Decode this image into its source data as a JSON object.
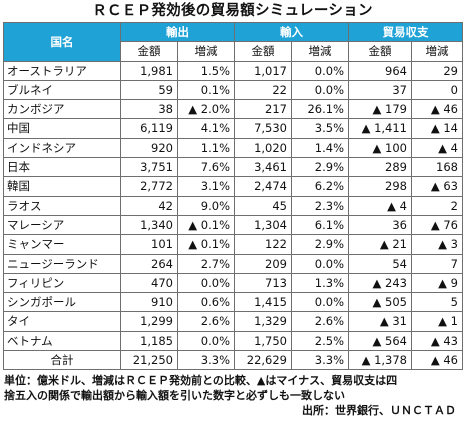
{
  "title": "ＲＣＥＰ発効後の貿易額シミュレーション",
  "chart_data": {
    "type": "table",
    "header_groups": {
      "country": "国名",
      "exports": "輸出",
      "imports": "輸入",
      "balance": "貿易収支"
    },
    "subheaders": {
      "ex_amount": "金額",
      "ex_change": "増減",
      "im_amount": "金額",
      "im_change": "増減",
      "bal_amount": "金額",
      "bal_change": "増減"
    },
    "rows": [
      {
        "country": "オーストラリア",
        "ex_amount": "1,981",
        "ex_change": "1.5%",
        "im_amount": "1,017",
        "im_change": "0.0%",
        "bal_amount": "964",
        "bal_change": "29"
      },
      {
        "country": "ブルネイ",
        "ex_amount": "59",
        "ex_change": "0.1%",
        "im_amount": "22",
        "im_change": "0.0%",
        "bal_amount": "37",
        "bal_change": "0"
      },
      {
        "country": "カンボジア",
        "ex_amount": "38",
        "ex_change": "▲ 2.0%",
        "im_amount": "217",
        "im_change": "26.1%",
        "bal_amount": "▲ 179",
        "bal_change": "▲ 46"
      },
      {
        "country": "中国",
        "ex_amount": "6,119",
        "ex_change": "4.1%",
        "im_amount": "7,530",
        "im_change": "3.5%",
        "bal_amount": "▲ 1,411",
        "bal_change": "▲ 14"
      },
      {
        "country": "インドネシア",
        "ex_amount": "920",
        "ex_change": "1.1%",
        "im_amount": "1,020",
        "im_change": "1.4%",
        "bal_amount": "▲ 100",
        "bal_change": "▲ 4"
      },
      {
        "country": "日本",
        "ex_amount": "3,751",
        "ex_change": "7.6%",
        "im_amount": "3,461",
        "im_change": "2.9%",
        "bal_amount": "289",
        "bal_change": "168"
      },
      {
        "country": "韓国",
        "ex_amount": "2,772",
        "ex_change": "3.1%",
        "im_amount": "2,474",
        "im_change": "6.2%",
        "bal_amount": "298",
        "bal_change": "▲ 63"
      },
      {
        "country": "ラオス",
        "ex_amount": "42",
        "ex_change": "9.0%",
        "im_amount": "45",
        "im_change": "2.3%",
        "bal_amount": "▲ 4",
        "bal_change": "2"
      },
      {
        "country": "マレーシア",
        "ex_amount": "1,340",
        "ex_change": "▲ 0.1%",
        "im_amount": "1,304",
        "im_change": "6.1%",
        "bal_amount": "36",
        "bal_change": "▲ 76"
      },
      {
        "country": "ミャンマー",
        "ex_amount": "101",
        "ex_change": "▲ 0.1%",
        "im_amount": "122",
        "im_change": "2.9%",
        "bal_amount": "▲ 21",
        "bal_change": "▲ 3"
      },
      {
        "country": "ニュージーランド",
        "ex_amount": "264",
        "ex_change": "2.7%",
        "im_amount": "209",
        "im_change": "0.0%",
        "bal_amount": "54",
        "bal_change": "7"
      },
      {
        "country": "フィリピン",
        "ex_amount": "470",
        "ex_change": "0.0%",
        "im_amount": "713",
        "im_change": "1.3%",
        "bal_amount": "▲ 243",
        "bal_change": "▲ 9"
      },
      {
        "country": "シンガポール",
        "ex_amount": "910",
        "ex_change": "0.6%",
        "im_amount": "1,415",
        "im_change": "0.0%",
        "bal_amount": "▲ 505",
        "bal_change": "5"
      },
      {
        "country": "タイ",
        "ex_amount": "1,299",
        "ex_change": "2.6%",
        "im_amount": "1,329",
        "im_change": "2.6%",
        "bal_amount": "▲ 31",
        "bal_change": "▲ 1"
      },
      {
        "country": "ベトナム",
        "ex_amount": "1,185",
        "ex_change": "0.0%",
        "im_amount": "1,750",
        "im_change": "2.5%",
        "bal_amount": "▲ 564",
        "bal_change": "▲ 43"
      }
    ],
    "total": {
      "country": "合計",
      "ex_amount": "21,250",
      "ex_change": "3.3%",
      "im_amount": "22,629",
      "im_change": "3.3%",
      "bal_amount": "▲ 1,378",
      "bal_change": "▲ 46"
    }
  },
  "notes": {
    "line1": "単位：億米ドル、増減はＲＣＥＰ発効前との比較、▲はマイナス、貿易収支は四",
    "line2": "捨五入の関係で輸出額から輸入額を引いた数字と必ずしも一致しない",
    "source": "出所：世界銀行、ＵＮＣＴＡＤ"
  }
}
